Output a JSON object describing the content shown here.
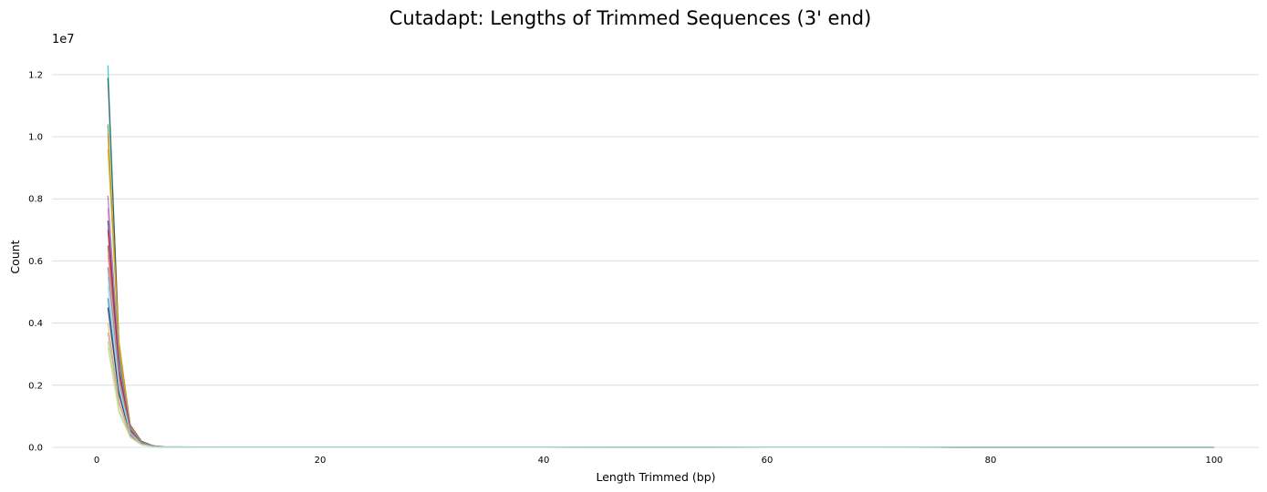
{
  "chart_data": {
    "type": "line",
    "title": "Cutadapt: Lengths of Trimmed Sequences (3' end)",
    "xlabel": "Length Trimmed (bp)",
    "ylabel": "Count",
    "y_scale_label": "1e7",
    "xlim": [
      -4,
      104
    ],
    "ylim": [
      0,
      12700000
    ],
    "xticks": [
      0,
      20,
      40,
      60,
      80,
      100
    ],
    "xtick_labels": [
      "0",
      "20",
      "40",
      "60",
      "80",
      "100"
    ],
    "yticks": [
      0,
      2000000,
      4000000,
      6000000,
      8000000,
      10000000,
      12000000
    ],
    "ytick_labels": [
      "0.0",
      "0.2",
      "0.4",
      "0.6",
      "0.8",
      "1.0",
      "1.2"
    ],
    "grid": "horizontal",
    "legend": "none",
    "x": [
      1,
      2,
      3,
      4,
      5,
      6,
      10,
      15,
      20,
      25,
      30,
      35,
      40,
      45,
      50,
      55,
      60,
      65,
      70,
      75,
      80,
      90,
      100
    ],
    "series": [
      {
        "color": "#17becf",
        "values": [
          12300000,
          3100000,
          700000,
          180000,
          50000,
          15000,
          8000,
          6000,
          5000,
          4000,
          4000,
          3000,
          3000,
          2000,
          2000,
          2000,
          6000,
          8000,
          6000,
          3000,
          500,
          200,
          100
        ]
      },
      {
        "color": "#2f4f4f",
        "values": [
          11900000,
          3300000,
          720000,
          200000,
          55000,
          18000,
          9000,
          7000,
          6000,
          5000,
          4000,
          3000,
          3000,
          2000,
          2000,
          2000,
          7000,
          9000,
          7000,
          3000,
          500,
          200,
          100
        ]
      },
      {
        "color": "#2ca02c",
        "values": [
          10400000,
          2900000,
          650000,
          170000,
          45000,
          14000,
          8000,
          6000,
          5000,
          4000,
          3000,
          3000,
          2000,
          2000,
          2000,
          2000,
          6000,
          7000,
          5000,
          2000,
          500,
          200,
          100
        ]
      },
      {
        "color": "#ff7f0e",
        "values": [
          10100000,
          3400000,
          680000,
          170000,
          45000,
          14000,
          8000,
          6000,
          5000,
          4000,
          3000,
          3000,
          2000,
          2000,
          2000,
          2000,
          5000,
          7000,
          6000,
          3000,
          500,
          200,
          100
        ]
      },
      {
        "color": "#bcbd22",
        "values": [
          9600000,
          3200000,
          660000,
          160000,
          42000,
          13000,
          7000,
          5000,
          4000,
          4000,
          3000,
          3000,
          2000,
          2000,
          2000,
          2000,
          5000,
          6000,
          5000,
          2000,
          500,
          200,
          100
        ]
      },
      {
        "color": "#9467bd",
        "values": [
          8100000,
          2800000,
          620000,
          150000,
          40000,
          12000,
          7000,
          5000,
          4000,
          3000,
          3000,
          2000,
          2000,
          2000,
          2000,
          2000,
          5000,
          6000,
          5000,
          2000,
          500,
          200,
          100
        ]
      },
      {
        "color": "#e377c2",
        "values": [
          7700000,
          2600000,
          580000,
          140000,
          38000,
          12000,
          7000,
          5000,
          4000,
          3000,
          3000,
          2000,
          2000,
          2000,
          2000,
          2000,
          4000,
          5000,
          4000,
          2000,
          500,
          200,
          100
        ]
      },
      {
        "color": "#1f3a93",
        "values": [
          7300000,
          2500000,
          560000,
          130000,
          36000,
          11000,
          6000,
          5000,
          4000,
          3000,
          3000,
          2000,
          2000,
          2000,
          2000,
          2000,
          4000,
          5000,
          4000,
          2000,
          500,
          200,
          100
        ]
      },
      {
        "color": "#d62728",
        "values": [
          7000000,
          2400000,
          540000,
          130000,
          35000,
          11000,
          6000,
          5000,
          4000,
          3000,
          3000,
          2000,
          2000,
          2000,
          2000,
          2000,
          4000,
          5000,
          4000,
          2000,
          500,
          200,
          100
        ]
      },
      {
        "color": "#8c564b",
        "values": [
          6500000,
          2300000,
          520000,
          120000,
          34000,
          10000,
          6000,
          4000,
          4000,
          3000,
          3000,
          2000,
          2000,
          2000,
          2000,
          2000,
          4000,
          5000,
          4000,
          2000,
          500,
          200,
          100
        ]
      },
      {
        "color": "#ff9896",
        "values": [
          6200000,
          2200000,
          500000,
          120000,
          33000,
          10000,
          6000,
          4000,
          3000,
          3000,
          2000,
          2000,
          2000,
          2000,
          2000,
          2000,
          4000,
          5000,
          4000,
          2000,
          500,
          200,
          100
        ]
      },
      {
        "color": "#7f7f7f",
        "values": [
          5800000,
          2100000,
          480000,
          110000,
          32000,
          10000,
          6000,
          4000,
          3000,
          3000,
          2000,
          2000,
          2000,
          2000,
          2000,
          2000,
          4000,
          4000,
          3000,
          2000,
          500,
          200,
          100
        ]
      },
      {
        "color": "#aec7e8",
        "values": [
          5500000,
          2000000,
          460000,
          110000,
          30000,
          9000,
          5000,
          4000,
          3000,
          3000,
          2000,
          2000,
          2000,
          2000,
          2000,
          2000,
          3000,
          4000,
          3000,
          2000,
          500,
          200,
          100
        ]
      },
      {
        "color": "#1f77b4",
        "values": [
          4800000,
          1800000,
          430000,
          100000,
          28000,
          9000,
          5000,
          4000,
          3000,
          3000,
          2000,
          2000,
          2000,
          2000,
          2000,
          2000,
          3000,
          4000,
          3000,
          2000,
          500,
          200,
          100
        ]
      },
      {
        "color": "#0b2e59",
        "values": [
          4500000,
          1700000,
          410000,
          100000,
          27000,
          8000,
          5000,
          4000,
          3000,
          3000,
          2000,
          2000,
          2000,
          2000,
          2000,
          2000,
          3000,
          4000,
          3000,
          2000,
          500,
          200,
          100
        ]
      },
      {
        "color": "#f0a35e",
        "values": [
          4000000,
          1500000,
          380000,
          90000,
          25000,
          8000,
          5000,
          3000,
          3000,
          2000,
          2000,
          2000,
          2000,
          2000,
          1000,
          1000,
          3000,
          3000,
          3000,
          2000,
          500,
          200,
          100
        ]
      },
      {
        "color": "#c49c94",
        "values": [
          3700000,
          1400000,
          360000,
          90000,
          24000,
          8000,
          4000,
          3000,
          3000,
          2000,
          2000,
          2000,
          2000,
          1000,
          1000,
          1000,
          3000,
          3000,
          3000,
          2000,
          500,
          200,
          100
        ]
      },
      {
        "color": "#98df8a",
        "values": [
          3400000,
          1200000,
          330000,
          80000,
          22000,
          7000,
          4000,
          3000,
          3000,
          2000,
          2000,
          2000,
          2000,
          1000,
          1000,
          1000,
          3000,
          3000,
          2000,
          1000,
          500,
          200,
          100
        ]
      },
      {
        "color": "#dbdb8d",
        "values": [
          3200000,
          1100000,
          310000,
          80000,
          21000,
          7000,
          4000,
          3000,
          2000,
          2000,
          2000,
          2000,
          2000,
          1000,
          1000,
          1000,
          2000,
          3000,
          2000,
          1000,
          500,
          200,
          100
        ]
      },
      {
        "color": "#9edae5",
        "values": [
          5200000,
          1900000,
          450000,
          105000,
          29000,
          9000,
          5000,
          4000,
          3000,
          3000,
          2000,
          2000,
          2000,
          2000,
          2000,
          2000,
          3000,
          4000,
          3000,
          2000,
          500,
          200,
          100
        ]
      }
    ]
  }
}
